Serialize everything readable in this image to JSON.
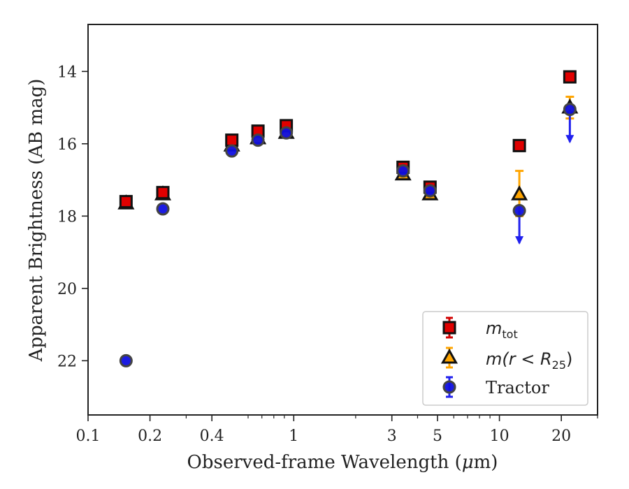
{
  "chart_data": {
    "type": "scatter",
    "xlabel_parts": {
      "pre": "Observed-frame Wavelength (",
      "mu": "μ",
      "post": "m)"
    },
    "ylabel": "Apparent Brightness (AB mag)",
    "x_scale": "log",
    "xlim": [
      0.1,
      30
    ],
    "ylim": [
      23.5,
      12.7
    ],
    "y_inverted": true,
    "x_ticks": [
      {
        "value": 0.1,
        "label": "0.1"
      },
      {
        "value": 0.2,
        "label": "0.2"
      },
      {
        "value": 0.4,
        "label": "0.4"
      },
      {
        "value": 1,
        "label": "1"
      },
      {
        "value": 3,
        "label": "3"
      },
      {
        "value": 5,
        "label": "5"
      },
      {
        "value": 10,
        "label": "10"
      },
      {
        "value": 20,
        "label": "20"
      }
    ],
    "y_ticks": [
      14,
      16,
      18,
      20,
      22
    ],
    "legend_position": "lower-right",
    "series": [
      {
        "name": "m_tot",
        "legend_parts": {
          "base": "m",
          "sub": "tot"
        },
        "marker": "square",
        "color": "#e00000",
        "errcolor": "#d00000",
        "points": [
          {
            "x": 0.153,
            "y": 17.6
          },
          {
            "x": 0.231,
            "y": 17.35
          },
          {
            "x": 0.5,
            "y": 15.9
          },
          {
            "x": 0.67,
            "y": 15.65
          },
          {
            "x": 0.92,
            "y": 15.5
          },
          {
            "x": 3.4,
            "y": 16.65
          },
          {
            "x": 4.6,
            "y": 17.2
          },
          {
            "x": 12.5,
            "y": 16.05
          },
          {
            "x": 22.0,
            "y": 14.15
          }
        ]
      },
      {
        "name": "m(r<R_25)",
        "legend_parts": {
          "pre": "m(r < R",
          "sub": "25",
          "post": ")"
        },
        "marker": "triangle",
        "color": "#ffa500",
        "errcolor": "#ffa500",
        "points": [
          {
            "x": 0.153,
            "y": 17.65
          },
          {
            "x": 0.231,
            "y": 17.4
          },
          {
            "x": 0.5,
            "y": 16.05
          },
          {
            "x": 0.67,
            "y": 15.85
          },
          {
            "x": 0.92,
            "y": 15.7
          },
          {
            "x": 3.4,
            "y": 16.85
          },
          {
            "x": 4.6,
            "y": 17.4
          },
          {
            "x": 12.5,
            "y": 17.4,
            "err_low": 0.65,
            "err_high": 0.6
          },
          {
            "x": 22.0,
            "y": 15.0,
            "err_low": 0.3,
            "err_high": 0.3
          }
        ]
      },
      {
        "name": "Tractor",
        "legend_parts": {
          "text": "Tractor"
        },
        "marker": "circle",
        "color": "#1010e0",
        "errcolor": "#2020ee",
        "points": [
          {
            "x": 0.153,
            "y": 22.0
          },
          {
            "x": 0.231,
            "y": 17.8
          },
          {
            "x": 0.5,
            "y": 16.2
          },
          {
            "x": 0.67,
            "y": 15.9
          },
          {
            "x": 0.92,
            "y": 15.7
          },
          {
            "x": 3.4,
            "y": 16.75
          },
          {
            "x": 4.6,
            "y": 17.3
          },
          {
            "x": 12.5,
            "y": 17.85,
            "upper_limit": true,
            "arrow_to": 18.75
          },
          {
            "x": 22.0,
            "y": 15.05,
            "upper_limit": true,
            "arrow_to": 15.95
          }
        ]
      }
    ]
  }
}
